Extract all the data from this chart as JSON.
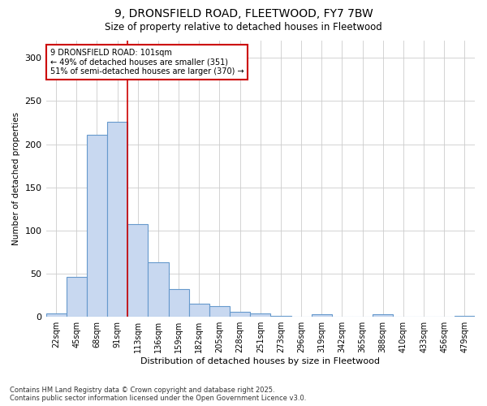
{
  "title_line1": "9, DRONSFIELD ROAD, FLEETWOOD, FY7 7BW",
  "title_line2": "Size of property relative to detached houses in Fleetwood",
  "xlabel": "Distribution of detached houses by size in Fleetwood",
  "ylabel": "Number of detached properties",
  "footnote_line1": "Contains HM Land Registry data © Crown copyright and database right 2025.",
  "footnote_line2": "Contains public sector information licensed under the Open Government Licence v3.0.",
  "annotation_line1": "9 DRONSFIELD ROAD: 101sqm",
  "annotation_line2": "← 49% of detached houses are smaller (351)",
  "annotation_line3": "51% of semi-detached houses are larger (370) →",
  "bar_labels": [
    "22sqm",
    "45sqm",
    "68sqm",
    "91sqm",
    "113sqm",
    "136sqm",
    "159sqm",
    "182sqm",
    "205sqm",
    "228sqm",
    "251sqm",
    "273sqm",
    "296sqm",
    "319sqm",
    "342sqm",
    "365sqm",
    "388sqm",
    "410sqm",
    "433sqm",
    "456sqm",
    "479sqm"
  ],
  "bar_values": [
    4,
    46,
    211,
    226,
    107,
    63,
    32,
    15,
    12,
    6,
    4,
    1,
    0,
    3,
    0,
    0,
    3,
    0,
    0,
    0,
    1
  ],
  "bar_color": "#c8d8f0",
  "bar_edge_color": "#6699cc",
  "grid_color": "#cccccc",
  "background_color": "#ffffff",
  "vline_x": 3.5,
  "vline_color": "#cc0000",
  "annotation_box_edge_color": "#cc0000",
  "ylim": [
    0,
    320
  ],
  "yticks": [
    0,
    50,
    100,
    150,
    200,
    250,
    300
  ],
  "figsize": [
    6.0,
    5.0
  ],
  "dpi": 100
}
